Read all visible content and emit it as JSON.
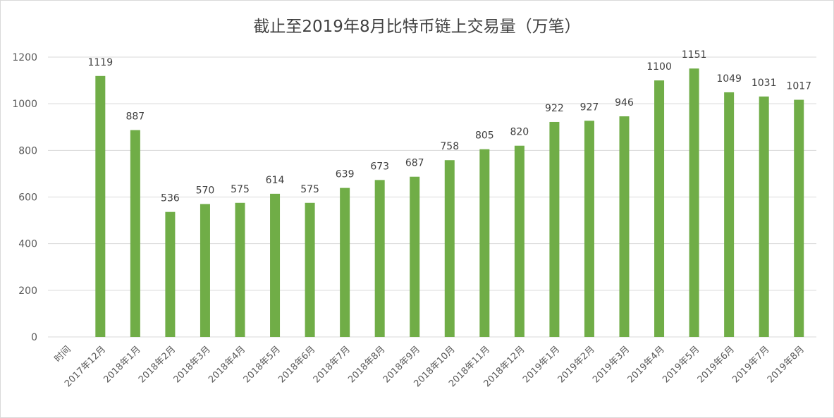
{
  "chart_data": {
    "type": "bar",
    "title": "截止至2019年8月比特币链上交易量（万笔）",
    "xlabel": "",
    "ylabel": "",
    "ylim": [
      0,
      1200
    ],
    "yticks": [
      0,
      200,
      400,
      600,
      800,
      1000,
      1200
    ],
    "categories": [
      "时间",
      "2017年12月",
      "2018年1月",
      "2018年2月",
      "2018年3月",
      "2018年4月",
      "2018年5月",
      "2018年6月",
      "2018年7月",
      "2018年8月",
      "2018年9月",
      "2018年10月",
      "2018年11月",
      "2018年12月",
      "2019年1月",
      "2019年2月",
      "2019年3月",
      "2019年4月",
      "2019年5月",
      "2019年6月",
      "2019年7月",
      "2019年8月"
    ],
    "values": [
      null,
      1119,
      887,
      536,
      570,
      575,
      614,
      575,
      639,
      673,
      687,
      758,
      805,
      820,
      922,
      927,
      946,
      1100,
      1151,
      1049,
      1031,
      1017
    ],
    "data_labels": true,
    "grid": true,
    "legend": "none",
    "bar_color": "#70ad47"
  }
}
